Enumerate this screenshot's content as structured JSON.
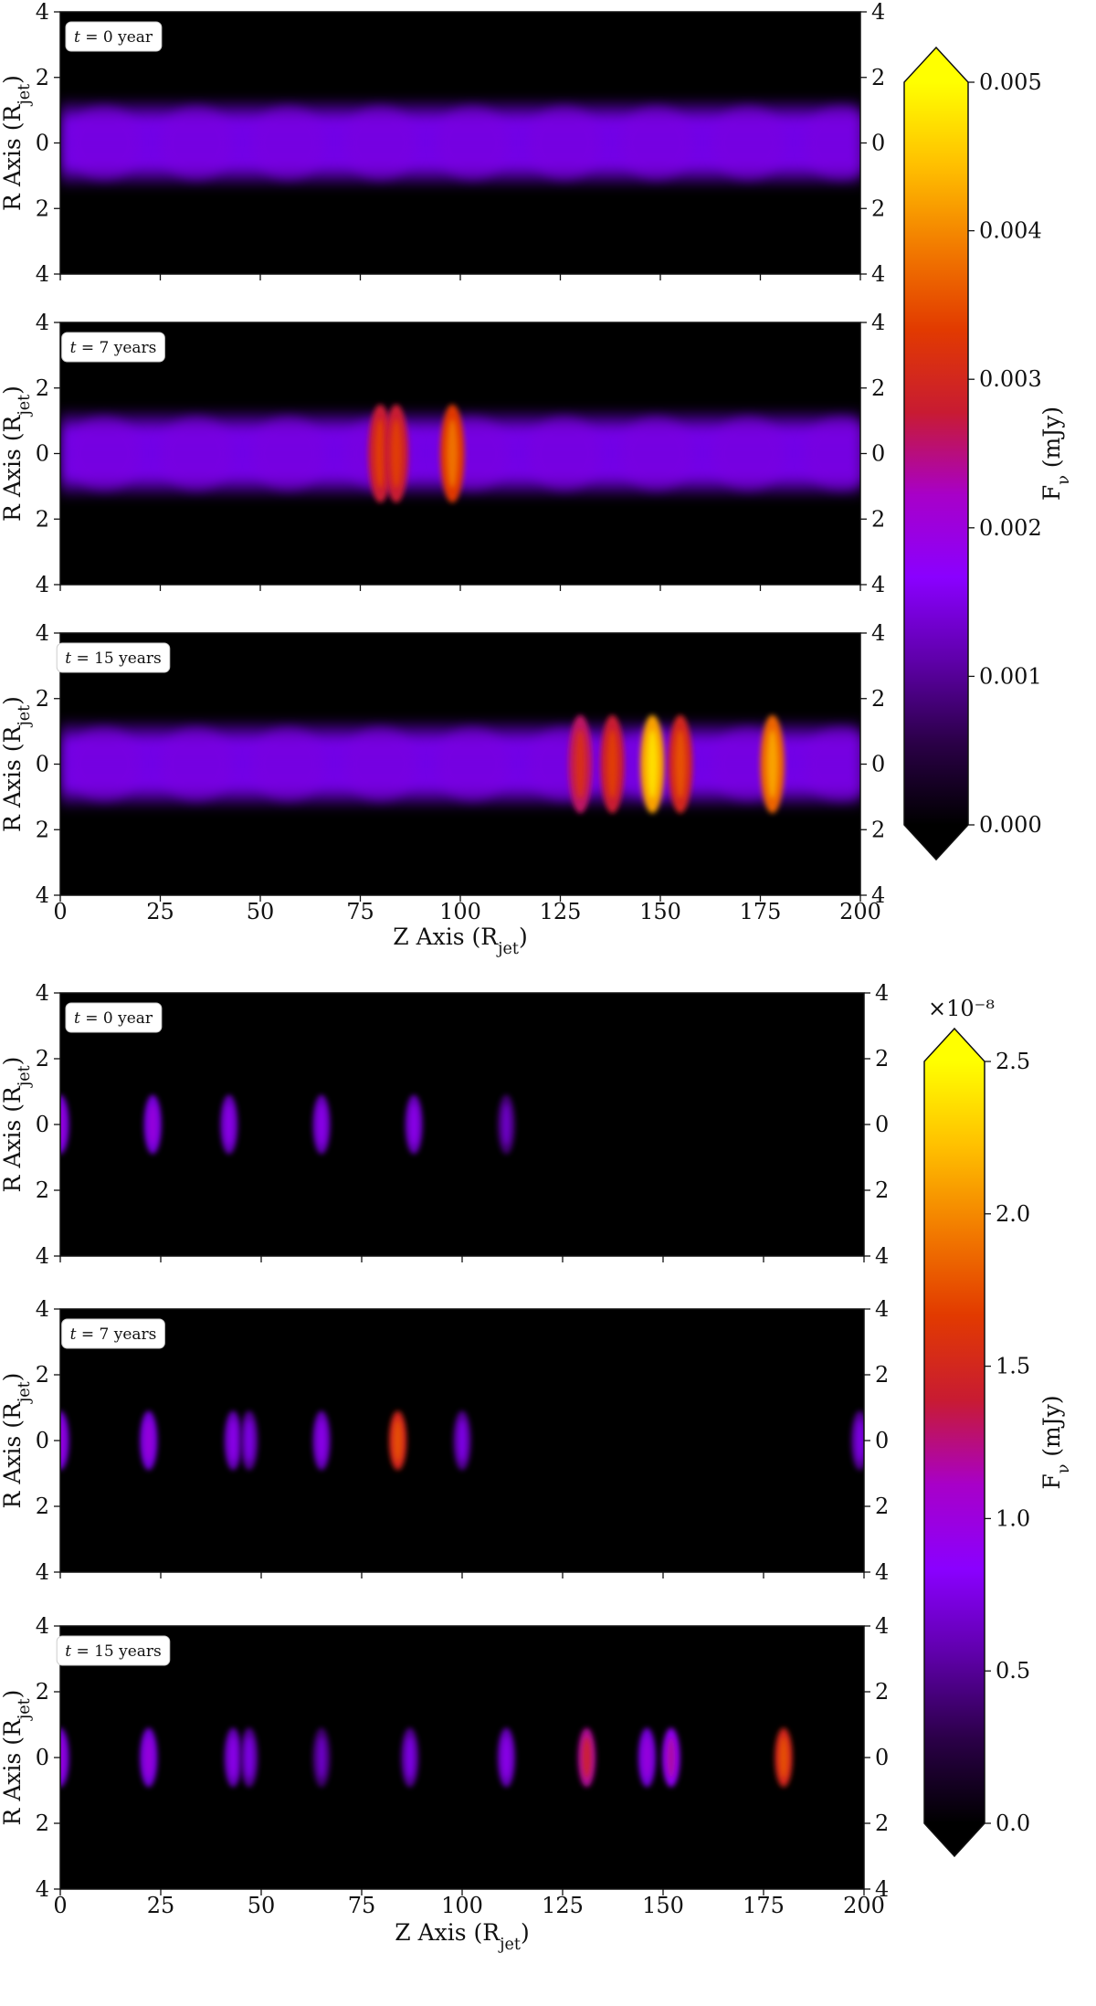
{
  "colors": {
    "background": "#000000",
    "frame": "#111111",
    "colormap": [
      "#000000",
      "#2b0048",
      "#5f00aa",
      "#8a00ff",
      "#a800c8",
      "#c81b32",
      "#e23a00",
      "#f27b00",
      "#ffc000",
      "#ffff00"
    ]
  },
  "chart_data": [
    {
      "type": "heatmap",
      "x_label": "Z Axis (R_jet)",
      "y_label": "R Axis (R_jet)",
      "xlim": [
        0,
        200
      ],
      "ylim": [
        -4,
        4
      ],
      "x_ticks": [
        "0",
        "25",
        "50",
        "75",
        "100",
        "125",
        "150",
        "175",
        "200"
      ],
      "y_ticks": [
        "4",
        "2",
        "0",
        "2",
        "4"
      ],
      "colorbar": {
        "label": "F_ν (mJy)",
        "range": [
          0.0,
          0.005
        ],
        "ticks": [
          "0.000",
          "0.001",
          "0.002",
          "0.003",
          "0.004",
          "0.005"
        ],
        "multiplier": ""
      },
      "panels": [
        {
          "time_label": "t = 0 year",
          "jet_level": 0.00145,
          "features": []
        },
        {
          "time_label": "t = 7 years",
          "jet_level": 0.00145,
          "features": [
            {
              "z": 80,
              "value": 0.0028
            },
            {
              "z": 84,
              "value": 0.0028
            },
            {
              "z": 98,
              "value": 0.0033
            }
          ]
        },
        {
          "time_label": "t = 15 years",
          "jet_level": 0.00145,
          "features": [
            {
              "z": 130,
              "value": 0.0026
            },
            {
              "z": 138,
              "value": 0.0028
            },
            {
              "z": 148,
              "value": 0.0042
            },
            {
              "z": 155,
              "value": 0.003
            },
            {
              "z": 178,
              "value": 0.0037
            }
          ]
        }
      ]
    },
    {
      "type": "heatmap",
      "x_label": "Z Axis (R_jet)",
      "y_label": "R Axis (R_jet)",
      "xlim": [
        0,
        200
      ],
      "ylim": [
        -4,
        4
      ],
      "x_ticks": [
        "0",
        "25",
        "50",
        "75",
        "100",
        "125",
        "150",
        "175",
        "200"
      ],
      "y_ticks": [
        "4",
        "2",
        "0",
        "2",
        "4"
      ],
      "colorbar": {
        "label": "F_ν (mJy)",
        "range": [
          0.0,
          2.5
        ],
        "ticks": [
          "0.0",
          "0.5",
          "1.0",
          "1.5",
          "2.0",
          "2.5"
        ],
        "multiplier": "×10⁻⁸"
      },
      "panels": [
        {
          "time_label": "t = 0 year",
          "jet_level": 0,
          "features": [
            {
              "z": 0,
              "value": 0.7
            },
            {
              "z": 23,
              "value": 0.7
            },
            {
              "z": 42,
              "value": 0.6
            },
            {
              "z": 65,
              "value": 0.6
            },
            {
              "z": 88,
              "value": 0.6
            },
            {
              "z": 111,
              "value": 0.4
            }
          ]
        },
        {
          "time_label": "t = 7 years",
          "jet_level": 0,
          "features": [
            {
              "z": 0,
              "value": 0.7
            },
            {
              "z": 22,
              "value": 0.7
            },
            {
              "z": 43,
              "value": 0.6
            },
            {
              "z": 47,
              "value": 0.5
            },
            {
              "z": 65,
              "value": 0.6
            },
            {
              "z": 84,
              "value": 1.5
            },
            {
              "z": 100,
              "value": 0.5
            },
            {
              "z": 199,
              "value": 0.5
            }
          ]
        },
        {
          "time_label": "t = 15 years",
          "jet_level": 0,
          "features": [
            {
              "z": 0,
              "value": 0.7
            },
            {
              "z": 22,
              "value": 0.7
            },
            {
              "z": 43,
              "value": 0.6
            },
            {
              "z": 47,
              "value": 0.5
            },
            {
              "z": 65,
              "value": 0.4
            },
            {
              "z": 87,
              "value": 0.5
            },
            {
              "z": 111,
              "value": 0.6
            },
            {
              "z": 131,
              "value": 1.2
            },
            {
              "z": 146,
              "value": 0.7
            },
            {
              "z": 152,
              "value": 0.9
            },
            {
              "z": 180,
              "value": 1.5
            }
          ]
        }
      ]
    }
  ]
}
